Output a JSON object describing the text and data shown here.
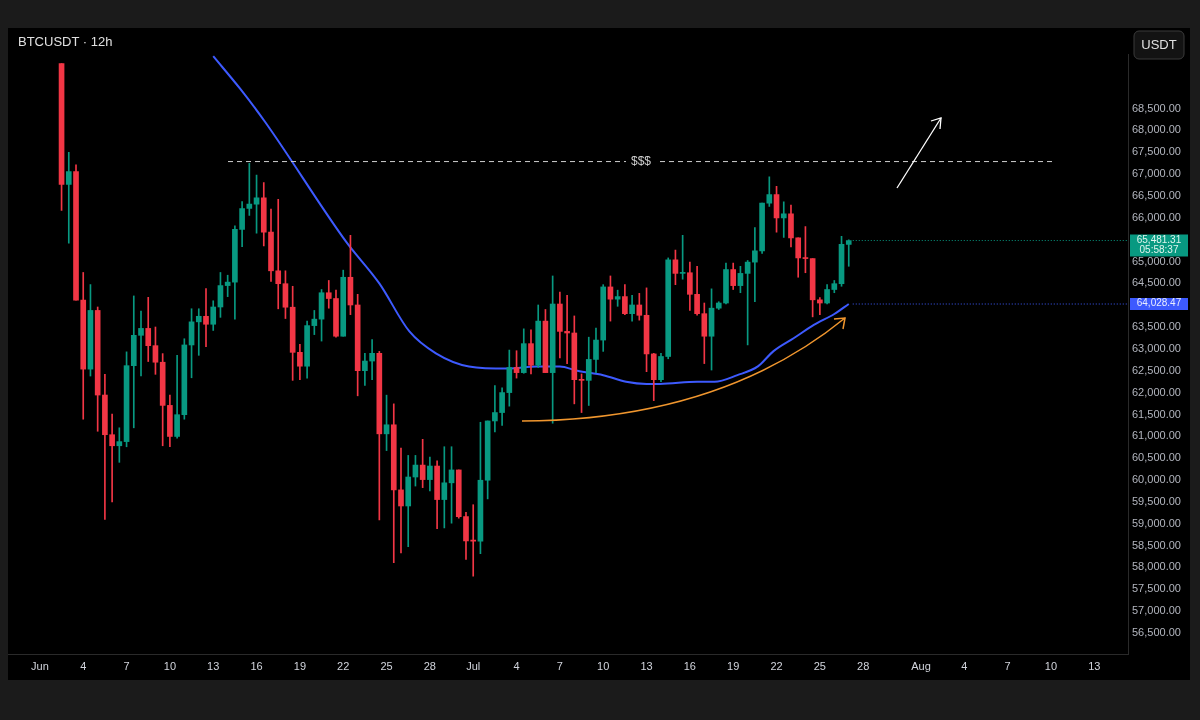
{
  "chart_data": {
    "type": "candlestick",
    "title": "BTCUSDT · 12h",
    "ylabel": "USDT",
    "x": [
      "--06-02T12:00",
      "--06-03T00:00",
      "--06-03T12:00",
      "--06-04T00:00",
      "--06-04T12:00",
      "--06-05T00:00",
      "--06-05T12:00",
      "--06-06T00:00",
      "--06-06T12:00",
      "--06-07T00:00",
      "--06-07T12:00",
      "--06-08T00:00",
      "--06-08T12:00",
      "--06-09T00:00",
      "--06-09T12:00",
      "--06-10T00:00",
      "--06-10T12:00",
      "--06-11T00:00",
      "--06-11T12:00",
      "--06-12T00:00",
      "--06-12T12:00",
      "--06-13T00:00",
      "--06-13T12:00",
      "--06-14T00:00",
      "--06-14T12:00",
      "--06-15T00:00",
      "--06-15T12:00",
      "--06-16T00:00",
      "--06-16T12:00",
      "--06-17T00:00",
      "--06-17T12:00",
      "--06-18T00:00",
      "--06-18T12:00",
      "--06-19T00:00",
      "--06-19T12:00",
      "--06-20T00:00",
      "--06-20T12:00",
      "--06-21T00:00",
      "--06-21T12:00",
      "--06-22T00:00",
      "--06-22T12:00",
      "--06-23T00:00",
      "--06-23T12:00",
      "--06-24T00:00",
      "--06-24T12:00",
      "--06-25T00:00",
      "--06-25T12:00",
      "--06-26T00:00",
      "--06-26T12:00",
      "--06-27T00:00",
      "--06-27T12:00",
      "--06-28T00:00",
      "--06-28T12:00",
      "--06-29T00:00",
      "--06-29T12:00",
      "--06-30T00:00",
      "--06-30T12:00",
      "--07-01T00:00",
      "--07-01T12:00",
      "--07-02T00:00",
      "--07-02T12:00",
      "--07-03T00:00",
      "--07-03T12:00",
      "--07-04T00:00",
      "--07-04T12:00",
      "--07-05T00:00",
      "--07-05T12:00",
      "--07-06T00:00",
      "--07-06T12:00",
      "--07-07T00:00",
      "--07-07T12:00",
      "--07-08T00:00",
      "--07-08T12:00",
      "--07-09T00:00",
      "--07-09T12:00",
      "--07-10T00:00",
      "--07-10T12:00",
      "--07-11T00:00",
      "--07-11T12:00",
      "--07-12T00:00",
      "--07-12T12:00",
      "--07-13T00:00",
      "--07-13T12:00",
      "--07-14T00:00",
      "--07-14T12:00",
      "--07-15T00:00",
      "--07-15T12:00",
      "--07-16T00:00",
      "--07-16T12:00",
      "--07-17T00:00",
      "--07-17T12:00",
      "--07-18T00:00",
      "--07-18T12:00",
      "--07-19T00:00",
      "--07-19T12:00",
      "--07-20T00:00",
      "--07-20T12:00",
      "--07-21T00:00",
      "--07-21T12:00",
      "--07-22T00:00",
      "--07-22T12:00",
      "--07-23T00:00",
      "--07-23T12:00",
      "--07-24T00:00",
      "--07-24T12:00",
      "--07-25T00:00",
      "--07-25T12:00",
      "--07-26T00:00",
      "--07-26T12:00",
      "--07-27T00:00"
    ],
    "ohlc": [
      [
        69530,
        69530,
        66172,
        66764
      ],
      [
        66764,
        67499,
        65421,
        67057
      ],
      [
        67057,
        67215,
        64118,
        64118
      ],
      [
        64118,
        64750,
        61392,
        62538
      ],
      [
        62538,
        64473,
        62380,
        63881
      ],
      [
        63881,
        63960,
        61116,
        61945
      ],
      [
        61945,
        62419,
        59101,
        61037
      ],
      [
        61037,
        61511,
        59496,
        60784
      ],
      [
        60784,
        61195,
        60405,
        60879
      ],
      [
        60879,
        62933,
        60761,
        62617
      ],
      [
        62617,
        64213,
        61195,
        63312
      ],
      [
        63312,
        63865,
        62380,
        63470
      ],
      [
        63470,
        64181,
        62712,
        63075
      ],
      [
        63075,
        63502,
        62419,
        62696
      ],
      [
        62696,
        62893,
        60784,
        61708
      ],
      [
        61708,
        61945,
        60761,
        60997
      ],
      [
        60997,
        62854,
        60958,
        61495
      ],
      [
        61495,
        63233,
        61392,
        63091
      ],
      [
        63091,
        63920,
        62340,
        63620
      ],
      [
        63620,
        63920,
        62854,
        63747
      ],
      [
        63747,
        64379,
        63052,
        63565
      ],
      [
        63565,
        64102,
        63423,
        63960
      ],
      [
        63960,
        64750,
        63723,
        64450
      ],
      [
        64450,
        64687,
        64197,
        64529
      ],
      [
        64529,
        65817,
        63684,
        65738
      ],
      [
        65738,
        66370,
        65343,
        66212
      ],
      [
        66218,
        67250,
        66056,
        66314
      ],
      [
        66314,
        66977,
        65650,
        66461
      ],
      [
        66461,
        66808,
        65355,
        65672
      ],
      [
        65672,
        66203,
        64544,
        64788
      ],
      [
        64788,
        66425,
        63918,
        64493
      ],
      [
        64493,
        64788,
        63696,
        63955
      ],
      [
        63955,
        64434,
        62281,
        62922
      ],
      [
        62922,
        63107,
        62296,
        62605
      ],
      [
        62605,
        63638,
        62333,
        63534
      ],
      [
        63534,
        63881,
        63328,
        63682
      ],
      [
        63682,
        64360,
        63180,
        64286
      ],
      [
        64286,
        64567,
        63932,
        64154
      ],
      [
        64154,
        64345,
        63269,
        63291
      ],
      [
        63291,
        64803,
        63291,
        64640
      ],
      [
        64640,
        65599,
        63785,
        64006
      ],
      [
        64006,
        64250,
        61927,
        62502
      ],
      [
        62502,
        62900,
        62163,
        62723
      ],
      [
        62723,
        63217,
        62296,
        62900
      ],
      [
        62900,
        62944,
        59088,
        61057
      ],
      [
        61057,
        61942,
        60674,
        61264
      ],
      [
        61264,
        61743,
        58108,
        59774
      ],
      [
        59774,
        60732,
        58329,
        59406
      ],
      [
        59406,
        60563,
        58477,
        60069
      ],
      [
        60069,
        60563,
        59862,
        60342
      ],
      [
        60342,
        60932,
        59826,
        60010
      ],
      [
        60010,
        60526,
        59752,
        60320
      ],
      [
        60320,
        60438,
        58889,
        59553
      ],
      [
        59553,
        60762,
        58904,
        59936
      ],
      [
        59936,
        60762,
        59014,
        60231
      ],
      [
        60231,
        60231,
        59125,
        59162
      ],
      [
        59162,
        59258,
        58182,
        58609
      ],
      [
        58609,
        59435,
        57798,
        58600
      ],
      [
        58600,
        61322,
        58314,
        59995
      ],
      [
        59995,
        61352,
        59568,
        61352
      ],
      [
        61352,
        62163,
        61101,
        61544
      ],
      [
        61544,
        62111,
        61249,
        62001
      ],
      [
        62001,
        62974,
        61691,
        62576
      ],
      [
        62576,
        62959,
        62333,
        62458
      ],
      [
        62458,
        63460,
        62443,
        63121
      ],
      [
        63121,
        63438,
        62428,
        62628
      ],
      [
        62628,
        64006,
        62576,
        63637
      ],
      [
        63637,
        63903,
        62458,
        62458
      ],
      [
        62458,
        64670,
        61300,
        64028
      ],
      [
        64028,
        64301,
        62797,
        63402
      ],
      [
        63402,
        64227,
        62664,
        63365
      ],
      [
        63365,
        63755,
        61743,
        62296
      ],
      [
        62296,
        62428,
        61544,
        62281
      ],
      [
        62281,
        63269,
        61706,
        62760
      ],
      [
        62760,
        63475,
        62458,
        63203
      ],
      [
        63203,
        64471,
        62944,
        64419
      ],
      [
        64419,
        64670,
        63637,
        64139
      ],
      [
        64139,
        64345,
        63976,
        64198
      ],
      [
        64198,
        64471,
        63785,
        63807
      ],
      [
        63807,
        64227,
        63637,
        64006
      ],
      [
        64006,
        64272,
        63659,
        63770
      ],
      [
        63770,
        64397,
        62480,
        62886
      ],
      [
        62886,
        62900,
        61817,
        62296
      ],
      [
        62296,
        62900,
        62250,
        62827
      ],
      [
        62827,
        65083,
        62775,
        65039
      ],
      [
        65039,
        65260,
        64471,
        64729
      ],
      [
        64729,
        65599,
        64596,
        64744
      ],
      [
        64744,
        64987,
        63881,
        64250
      ],
      [
        64250,
        64891,
        63770,
        63807
      ],
      [
        63807,
        64051,
        62665,
        63291
      ],
      [
        63291,
        64375,
        62517,
        63933
      ],
      [
        63933,
        64080,
        63903,
        64051
      ],
      [
        64051,
        64965,
        64029,
        64817
      ],
      [
        64817,
        64965,
        64360,
        64449
      ],
      [
        64449,
        64891,
        64287,
        64729
      ],
      [
        64729,
        65024,
        63092,
        64987
      ],
      [
        64987,
        65776,
        64080,
        65245
      ],
      [
        65245,
        66336,
        65186,
        66336
      ],
      [
        66336,
        66941,
        66262,
        66535
      ],
      [
        66535,
        66720,
        65673,
        65997
      ],
      [
        65997,
        66366,
        65555,
        66093
      ],
      [
        66093,
        66292,
        65334,
        65540
      ],
      [
        65540,
        65540,
        64641,
        65083
      ],
      [
        65083,
        65798,
        64744,
        65068
      ],
      [
        65068,
        65068,
        63734,
        64124
      ],
      [
        64124,
        64176,
        63785,
        64051
      ],
      [
        64051,
        64471,
        64029,
        64360
      ],
      [
        64360,
        64567,
        64287,
        64493
      ],
      [
        64493,
        65577,
        64434,
        65392
      ],
      [
        65392,
        65496,
        64892,
        65481.31
      ]
    ],
    "colors": [
      "#f23645",
      "#089981",
      "#f23645",
      "#f23645",
      "#089981",
      "#f23645",
      "#f23645",
      "#f23645",
      "#089981",
      "#089981",
      "#089981",
      "#089981",
      "#f23645",
      "#f23645",
      "#f23645",
      "#f23645",
      "#089981",
      "#089981",
      "#089981",
      "#089981",
      "#f23645",
      "#089981",
      "#089981",
      "#089981",
      "#089981",
      "#089981",
      "#089981",
      "#089981",
      "#f23645",
      "#f23645",
      "#f23645",
      "#f23645",
      "#f23645",
      "#f23645",
      "#089981",
      "#089981",
      "#089981",
      "#f23645",
      "#f23645",
      "#089981",
      "#f23645",
      "#f23645",
      "#089981",
      "#089981",
      "#f23645",
      "#089981",
      "#f23645",
      "#f23645",
      "#089981",
      "#089981",
      "#f23645",
      "#089981",
      "#f23645",
      "#089981",
      "#089981",
      "#f23645",
      "#f23645",
      "#f23645",
      "#089981",
      "#089981",
      "#089981",
      "#089981",
      "#089981",
      "#f23645",
      "#089981",
      "#f23645",
      "#089981",
      "#f23645",
      "#089981",
      "#f23645",
      "#f23645",
      "#f23645",
      "#f23645",
      "#089981",
      "#089981",
      "#089981",
      "#f23645",
      "#089981",
      "#f23645",
      "#089981",
      "#f23645",
      "#f23645",
      "#f23645",
      "#089981",
      "#089981",
      "#f23645",
      "#089981",
      "#f23645",
      "#f23645",
      "#f23645",
      "#089981",
      "#089981",
      "#089981",
      "#f23645",
      "#089981",
      "#089981",
      "#089981",
      "#089981",
      "#089981",
      "#f23645",
      "#089981",
      "#f23645",
      "#f23645",
      "#f23645",
      "#f23645",
      "#f23645",
      "#089981",
      "#089981",
      "#089981",
      "#089981"
    ],
    "series": [
      {
        "type": "line",
        "color": "#3d5afe",
        "x": [
          "--06-13T00:00",
          "--06-14T21:00",
          "--06-16T14:00",
          "--06-22T05:00",
          "--06-24T12:00",
          "--06-26T14:00",
          "--06-28T10:00",
          "--06-30T17:00",
          "--07-03T10:00",
          "--07-05T10:00",
          "--07-07T00:00",
          "--07-08T05:00",
          "--07-10T00:00",
          "--07-11T14:00",
          "--07-13T00:00",
          "--07-13T22:00",
          "--07-16T12:00",
          "--07-17T17:00",
          "--07-19T07:00",
          "--07-20T17:00",
          "--07-21T19:00",
          "--07-23T05:00",
          "--07-24T14:00",
          "--07-26T00:00",
          "--07-27T00:00"
        ],
        "values": [
          69700,
          68950,
          68200,
          65450,
          64500,
          63400,
          62900,
          62600,
          62550,
          62600,
          62600,
          62500,
          62400,
          62250,
          62200,
          62200,
          62250,
          62250,
          62400,
          62600,
          62950,
          63250,
          63550,
          63800,
          64028.47
        ]
      }
    ],
    "xlim": [
      "--05-29T19:00",
      "--08-15T08:00"
    ],
    "xticks": [
      {
        "value": "--06-01",
        "label": "Jun"
      },
      {
        "value": "--06-04",
        "label": "4"
      },
      {
        "value": "--06-07",
        "label": "7"
      },
      {
        "value": "--06-10",
        "label": "10"
      },
      {
        "value": "--06-13",
        "label": "13"
      },
      {
        "value": "--06-16",
        "label": "16"
      },
      {
        "value": "--06-19",
        "label": "19"
      },
      {
        "value": "--06-22",
        "label": "22"
      },
      {
        "value": "--06-25",
        "label": "25"
      },
      {
        "value": "--06-28",
        "label": "28"
      },
      {
        "value": "--07-01",
        "label": "Jul"
      },
      {
        "value": "--07-04",
        "label": "4"
      },
      {
        "value": "--07-07",
        "label": "7"
      },
      {
        "value": "--07-10",
        "label": "10"
      },
      {
        "value": "--07-13",
        "label": "13"
      },
      {
        "value": "--07-16",
        "label": "16"
      },
      {
        "value": "--07-19",
        "label": "19"
      },
      {
        "value": "--07-22",
        "label": "22"
      },
      {
        "value": "--07-25",
        "label": "25"
      },
      {
        "value": "--07-28",
        "label": "28"
      },
      {
        "value": "--08-01",
        "label": "Aug"
      },
      {
        "value": "--08-04",
        "label": "4"
      },
      {
        "value": "--08-07",
        "label": "7"
      },
      {
        "value": "--08-10",
        "label": "10"
      },
      {
        "value": "--08-13",
        "label": "13"
      }
    ],
    "ylim": [
      56000,
      69750
    ],
    "yticks": [
      {
        "value": 56500,
        "label": "56,500.00"
      },
      {
        "value": 57000,
        "label": "57,000.00"
      },
      {
        "value": 57500,
        "label": "57,500.00"
      },
      {
        "value": 58000,
        "label": "58,000.00"
      },
      {
        "value": 58500,
        "label": "58,500.00"
      },
      {
        "value": 59000,
        "label": "59,000.00"
      },
      {
        "value": 59500,
        "label": "59,500.00"
      },
      {
        "value": 60000,
        "label": "60,000.00"
      },
      {
        "value": 60500,
        "label": "60,500.00"
      },
      {
        "value": 61000,
        "label": "61,000.00"
      },
      {
        "value": 61500,
        "label": "61,500.00"
      },
      {
        "value": 62000,
        "label": "62,000.00"
      },
      {
        "value": 62500,
        "label": "62,500.00"
      },
      {
        "value": 63000,
        "label": "63,000.00"
      },
      {
        "value": 63500,
        "label": "63,500.00"
      },
      {
        "value": 64500,
        "label": "64,500.00"
      },
      {
        "value": 65000,
        "label": "65,000.00"
      },
      {
        "value": 66000,
        "label": "66,000.00"
      },
      {
        "value": 66500,
        "label": "66,500.00"
      },
      {
        "value": 67000,
        "label": "67,000.00"
      },
      {
        "value": 67500,
        "label": "67,500.00"
      },
      {
        "value": 68000,
        "label": "68,000.00"
      },
      {
        "value": 68500,
        "label": "68,500.00"
      }
    ],
    "ref_lines": [
      {
        "axis": "y",
        "value": 67288,
        "label": "$$$",
        "color": "#cfcfcf",
        "line_style": "dashed"
      }
    ],
    "annotations": [
      {
        "text": "65,481.31 05:58:37",
        "x": "--07-27T00:00",
        "y": 65481.31
      },
      {
        "text": "64,028.47",
        "x": "--07-27T00:00",
        "y": 64028.47
      }
    ],
    "marker": "none"
  }
}
